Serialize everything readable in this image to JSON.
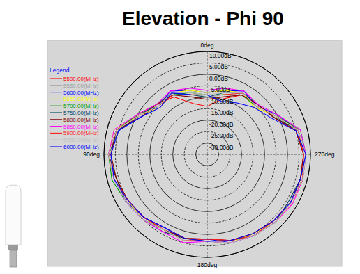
{
  "chart_data": {
    "type": "polar",
    "title": "Elevation - Phi 90",
    "legend_title": "Legend",
    "legend": "upper left",
    "grid": true,
    "x": [
      0,
      15,
      30,
      45,
      60,
      75,
      90,
      105,
      120,
      135,
      150,
      165,
      180,
      195,
      210,
      225,
      240,
      255,
      270,
      285,
      300,
      315,
      330,
      345
    ],
    "xlim": [
      0,
      360
    ],
    "xticks": [
      {
        "value": 0,
        "label": "0deg"
      },
      {
        "value": 90,
        "label": "90deg"
      },
      {
        "value": 180,
        "label": "180deg"
      },
      {
        "value": 270,
        "label": "270deg"
      }
    ],
    "ylim": [
      -35,
      10
    ],
    "yticks": [
      {
        "value": 10,
        "label": "10.00dB"
      },
      {
        "value": 5,
        "label": "5.00dB"
      },
      {
        "value": 0,
        "label": "0.00dB"
      },
      {
        "value": -5,
        "label": "-5.00dB"
      },
      {
        "value": -10,
        "label": "-10.00dB"
      },
      {
        "value": -15,
        "label": "-15.00dB"
      },
      {
        "value": -20,
        "label": "-20.00dB"
      },
      {
        "value": -25,
        "label": "-25.00dB"
      },
      {
        "value": -30,
        "label": "-30.00dB"
      }
    ],
    "series": [
      {
        "name": "5500.00(MHz)",
        "color": "#ff0000",
        "values": [
          -14,
          -12,
          -6,
          -4,
          0,
          6,
          8,
          6,
          5,
          4,
          2,
          3,
          2,
          4,
          5,
          6,
          7,
          7,
          7,
          5,
          -2,
          -4,
          -5,
          -10
        ]
      },
      {
        "name": "5550.00(MHz)",
        "color": "#a0a0a0",
        "values": [
          -10,
          -7,
          -4,
          -5,
          -1,
          5,
          7,
          7,
          6,
          5,
          3,
          3,
          3,
          5,
          6,
          7,
          7,
          8,
          7,
          6,
          -1,
          -5,
          -4,
          -8
        ]
      },
      {
        "name": "5600.00(MHz)",
        "color": "#0000ff",
        "values": [
          -8,
          -6,
          -3,
          -5,
          -2,
          6,
          8,
          7,
          6,
          4,
          2,
          4,
          2,
          5,
          6,
          6,
          7,
          8,
          8,
          6,
          0,
          -5,
          -3,
          -6
        ]
      },
      {
        "name": "5650.00(MHz)",
        "color": "#ffff00",
        "values": [
          -8,
          -6,
          -4,
          -6,
          -1,
          7,
          8,
          7,
          5,
          5,
          3,
          4,
          3,
          5,
          5,
          7,
          8,
          8,
          8,
          6,
          -1,
          -6,
          -4,
          -6
        ]
      },
      {
        "name": "5700.00(MHz)",
        "color": "#00a000",
        "values": [
          -9,
          -7,
          -5,
          -5,
          0,
          6,
          8,
          8,
          6,
          5,
          3,
          4,
          3,
          4,
          6,
          7,
          7,
          8,
          8,
          7,
          -1,
          -5,
          -5,
          -8
        ]
      },
      {
        "name": "5750.00(MHz)",
        "color": "#004060",
        "values": [
          -10,
          -8,
          -4,
          -4,
          -1,
          5,
          8,
          6,
          6,
          5,
          4,
          3,
          3,
          5,
          6,
          7,
          6,
          7,
          8,
          6,
          -2,
          -4,
          -4,
          -7
        ]
      },
      {
        "name": "5800.00(MHz)",
        "color": "#800000",
        "values": [
          -11,
          -9,
          -5,
          -4,
          -2,
          6,
          7,
          6,
          5,
          4,
          3,
          3,
          2,
          4,
          5,
          6,
          7,
          7,
          7,
          5,
          -2,
          -4,
          -5,
          -9
        ]
      },
      {
        "name": "5850.00(MHz)",
        "color": "#ff00ff",
        "values": [
          -7,
          -5,
          -3,
          -4,
          0,
          7,
          8,
          7,
          6,
          5,
          4,
          5,
          3,
          5,
          6,
          7,
          8,
          8,
          8,
          7,
          0,
          -4,
          -3,
          -5
        ]
      },
      {
        "name": "5900.00(MHz)",
        "color": "#ff2020",
        "values": [
          -9,
          -8,
          -5,
          -5,
          -1,
          6,
          8,
          7,
          5,
          4,
          3,
          4,
          2,
          4,
          6,
          6,
          7,
          8,
          7,
          6,
          -1,
          -5,
          -4,
          -8
        ]
      },
      {
        "name": "5950.00(MHz)",
        "color": "#c0c0c0",
        "values": [
          -9,
          -7,
          -4,
          -5,
          -1,
          6,
          8,
          7,
          6,
          5,
          3,
          4,
          3,
          5,
          6,
          7,
          7,
          8,
          8,
          6,
          -1,
          -5,
          -4,
          -7
        ]
      },
      {
        "name": "6000.00(MHz)",
        "color": "#0000ff",
        "values": [
          -9,
          -8,
          -4,
          -6,
          -2,
          5,
          7,
          7,
          5,
          4,
          2,
          3,
          3,
          4,
          5,
          6,
          7,
          7,
          8,
          5,
          -3,
          -6,
          -9,
          -11
        ]
      }
    ]
  }
}
